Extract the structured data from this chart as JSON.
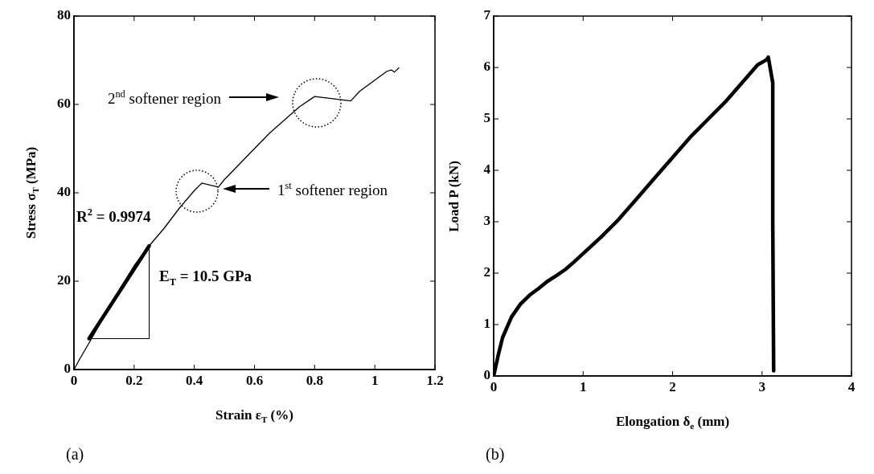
{
  "chart_data": [
    {
      "type": "line",
      "xlabel": "Strain ε$_{T}$ (%)",
      "ylabel": "Stress σ$_{T}$ (MPa)",
      "xlim": [
        0,
        1.2
      ],
      "ylim": [
        0,
        80
      ],
      "xticks": [
        0,
        0.2,
        0.4,
        0.6,
        0.8,
        1,
        1.2
      ],
      "yticks": [
        0,
        20,
        40,
        60,
        80
      ],
      "grid": false,
      "legend": false,
      "marker": "none",
      "line_style": "solid",
      "series": [
        {
          "color": "#000000",
          "x": [
            0,
            0.02,
            0.05,
            0.1,
            0.15,
            0.2,
            0.25,
            0.3,
            0.35,
            0.4,
            0.425,
            0.48,
            0.5,
            0.55,
            0.6,
            0.65,
            0.7,
            0.75,
            0.8,
            0.92,
            0.95,
            1.0,
            1.04,
            1.055,
            1.065,
            1.08
          ],
          "values": [
            0,
            2.5,
            6,
            12,
            18,
            23.5,
            28,
            32,
            36.5,
            40.5,
            42.2,
            41.3,
            43,
            46.5,
            50,
            53.5,
            56.5,
            59.5,
            61.8,
            60.8,
            63,
            65.5,
            67.5,
            67.8,
            67.3,
            68.3
          ]
        },
        {
          "color": "#000000",
          "x": [
            0.05,
            0.25
          ],
          "values": [
            7,
            28
          ]
        },
        {
          "color": "#000000",
          "x": [
            0.05,
            0.25,
            0.25
          ],
          "values": [
            7,
            7,
            28
          ]
        }
      ],
      "annotations": [
        "2$^{nd}$ softener region",
        "1$^{st}$ softener region",
        "R$^{2}$ = 0.9974",
        "E$_{T}$ = 10.5 GPa",
        "(a)"
      ]
    },
    {
      "type": "line",
      "xlabel": "Elongation δ$_{e}$ (mm)",
      "ylabel": "Load P (kN)",
      "xlim": [
        0,
        4
      ],
      "ylim": [
        0,
        7
      ],
      "xticks": [
        0,
        1,
        2,
        3,
        4
      ],
      "yticks": [
        0,
        1,
        2,
        3,
        4,
        5,
        6,
        7
      ],
      "grid": false,
      "legend": false,
      "marker": "none",
      "line_style": "solid",
      "series": [
        {
          "color": "#000000",
          "x": [
            0,
            0.05,
            0.1,
            0.2,
            0.3,
            0.4,
            0.5,
            0.6,
            0.7,
            0.8,
            0.9,
            1.0,
            1.2,
            1.4,
            1.6,
            1.8,
            2.0,
            2.2,
            2.4,
            2.6,
            2.8,
            2.95,
            3.05,
            3.07,
            3.1,
            3.12,
            3.12,
            3.13
          ],
          "values": [
            0,
            0.4,
            0.75,
            1.15,
            1.4,
            1.57,
            1.7,
            1.84,
            1.95,
            2.07,
            2.22,
            2.38,
            2.7,
            3.05,
            3.45,
            3.85,
            4.25,
            4.65,
            5.0,
            5.35,
            5.75,
            6.05,
            6.15,
            6.2,
            5.9,
            5.7,
            3,
            0.1
          ]
        }
      ],
      "annotations": [
        "(b)"
      ]
    }
  ]
}
